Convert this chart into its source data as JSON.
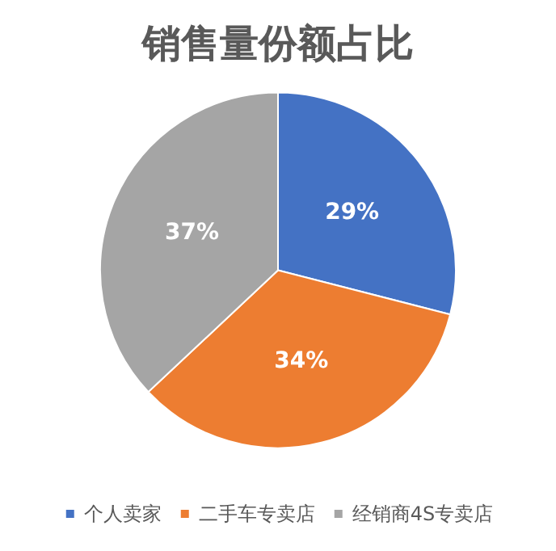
{
  "chart_data": {
    "type": "pie",
    "title": "销售量份额占比",
    "categories": [
      "个人卖家",
      "二手车专卖店",
      "经销商4S专卖店"
    ],
    "values": [
      29,
      34,
      37
    ],
    "colors": [
      "#4472c4",
      "#ed7d31",
      "#a5a5a5"
    ],
    "value_labels": [
      "29%",
      "34%",
      "37%"
    ],
    "legend": "bottom"
  }
}
